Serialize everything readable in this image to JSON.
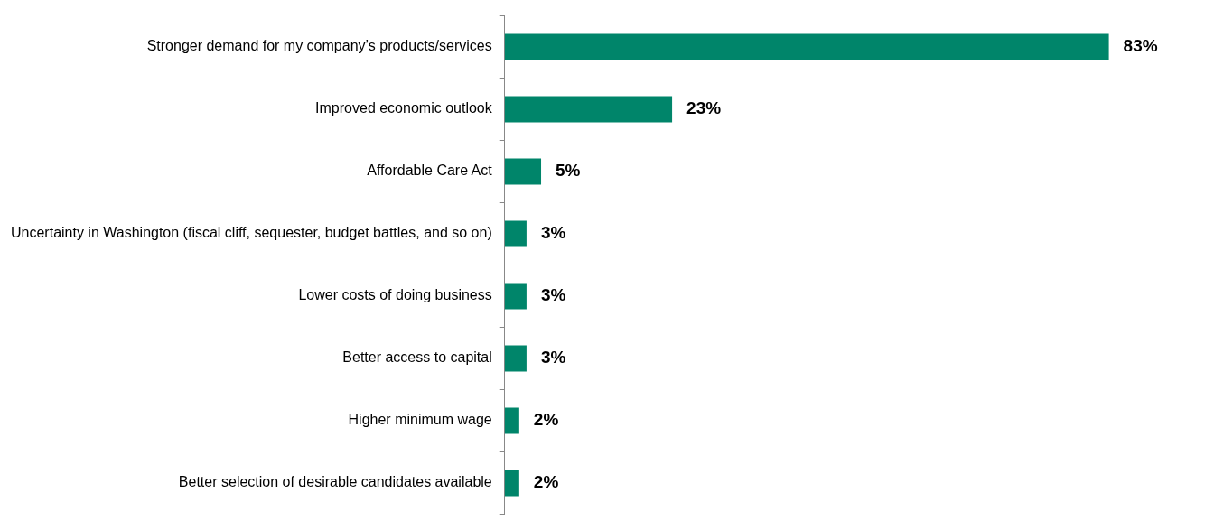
{
  "chart_data": {
    "type": "bar",
    "orientation": "horizontal",
    "categories": [
      "Stronger demand for my company’s products/services",
      "Improved economic outlook",
      "Affordable Care Act",
      "Uncertainty in Washington (fiscal cliff, sequester, budget battles, and so on)",
      "Lower costs of doing business",
      "Better access to capital",
      "Higher minimum wage",
      "Better selection of desirable candidates available"
    ],
    "values": [
      83,
      23,
      5,
      3,
      3,
      3,
      2,
      2
    ],
    "value_labels": [
      "83%",
      "23%",
      "5%",
      "3%",
      "3%",
      "3%",
      "2%",
      "2%"
    ],
    "color": "#00856a"
  }
}
